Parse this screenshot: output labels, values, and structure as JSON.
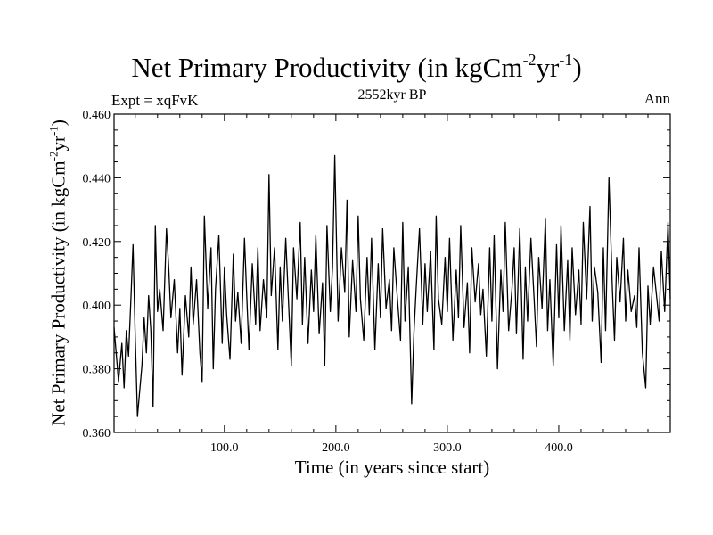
{
  "chart_data": {
    "type": "line",
    "title": {
      "main": "Net Primary Productivity (in kgCm",
      "sup1": "-2",
      "mid": "yr",
      "sup2": "-1",
      "end": ")"
    },
    "subtitle": "2552kyr BP",
    "expt_label": "Expt = xqFvK",
    "season_label": "Ann",
    "xlabel": "Time (in years since start)",
    "ylabel": {
      "main": "Net Primary Productivity (in kgCm",
      "sup1": "-2",
      "mid": "yr",
      "sup2": "-1",
      "end": ")"
    },
    "xlim": [
      1,
      500
    ],
    "ylim": [
      0.36,
      0.46
    ],
    "xticks": [
      {
        "value": 100,
        "label": "100.0"
      },
      {
        "value": 200,
        "label": "200.0"
      },
      {
        "value": 300,
        "label": "300.0"
      },
      {
        "value": 400,
        "label": "400.0"
      }
    ],
    "yticks": [
      {
        "value": 0.36,
        "label": "0.360"
      },
      {
        "value": 0.38,
        "label": "0.380"
      },
      {
        "value": 0.4,
        "label": "0.400"
      },
      {
        "value": 0.42,
        "label": "0.420"
      },
      {
        "value": 0.44,
        "label": "0.440"
      },
      {
        "value": 0.46,
        "label": "0.460"
      }
    ],
    "x": [
      1,
      5,
      8,
      10,
      12,
      14,
      16,
      18,
      20,
      22,
      24,
      26,
      28,
      30,
      32,
      34,
      36,
      38,
      40,
      42,
      45,
      48,
      50,
      52,
      55,
      58,
      60,
      62,
      65,
      68,
      70,
      72,
      75,
      78,
      80,
      82,
      85,
      88,
      90,
      92,
      95,
      98,
      100,
      102,
      105,
      108,
      110,
      112,
      115,
      118,
      120,
      122,
      125,
      128,
      130,
      132,
      135,
      138,
      140,
      142,
      145,
      148,
      150,
      152,
      155,
      158,
      160,
      162,
      165,
      168,
      170,
      172,
      175,
      178,
      180,
      182,
      185,
      188,
      190,
      192,
      195,
      197,
      199,
      202,
      205,
      208,
      210,
      212,
      215,
      218,
      220,
      222,
      225,
      228,
      230,
      232,
      235,
      238,
      240,
      242,
      245,
      248,
      250,
      252,
      255,
      258,
      260,
      262,
      265,
      268,
      270,
      272,
      275,
      278,
      280,
      282,
      285,
      288,
      290,
      292,
      295,
      298,
      300,
      302,
      305,
      308,
      310,
      312,
      315,
      318,
      320,
      322,
      325,
      328,
      330,
      332,
      335,
      338,
      340,
      342,
      345,
      348,
      350,
      352,
      355,
      358,
      360,
      362,
      365,
      368,
      370,
      372,
      375,
      378,
      380,
      382,
      385,
      388,
      390,
      392,
      395,
      398,
      400,
      402,
      405,
      408,
      410,
      412,
      415,
      418,
      420,
      422,
      425,
      428,
      430,
      432,
      435,
      438,
      440,
      442,
      445,
      448,
      450,
      452,
      455,
      458,
      460,
      462,
      465,
      468,
      470,
      472,
      475,
      478,
      480,
      482,
      485,
      488,
      490,
      492,
      495,
      498,
      500
    ],
    "values": [
      0.393,
      0.376,
      0.388,
      0.374,
      0.392,
      0.384,
      0.401,
      0.419,
      0.39,
      0.365,
      0.373,
      0.381,
      0.396,
      0.385,
      0.403,
      0.392,
      0.368,
      0.425,
      0.398,
      0.405,
      0.392,
      0.424,
      0.412,
      0.396,
      0.408,
      0.385,
      0.399,
      0.378,
      0.403,
      0.39,
      0.412,
      0.394,
      0.408,
      0.385,
      0.376,
      0.428,
      0.399,
      0.418,
      0.38,
      0.405,
      0.422,
      0.388,
      0.412,
      0.397,
      0.383,
      0.416,
      0.395,
      0.404,
      0.388,
      0.421,
      0.403,
      0.386,
      0.413,
      0.394,
      0.418,
      0.392,
      0.408,
      0.396,
      0.441,
      0.403,
      0.418,
      0.386,
      0.412,
      0.395,
      0.421,
      0.397,
      0.381,
      0.418,
      0.402,
      0.426,
      0.394,
      0.415,
      0.388,
      0.411,
      0.398,
      0.422,
      0.391,
      0.407,
      0.381,
      0.425,
      0.398,
      0.412,
      0.447,
      0.395,
      0.418,
      0.404,
      0.433,
      0.39,
      0.414,
      0.398,
      0.428,
      0.402,
      0.389,
      0.415,
      0.397,
      0.421,
      0.386,
      0.413,
      0.396,
      0.424,
      0.399,
      0.408,
      0.392,
      0.418,
      0.403,
      0.389,
      0.426,
      0.395,
      0.412,
      0.369,
      0.391,
      0.405,
      0.424,
      0.394,
      0.413,
      0.398,
      0.417,
      0.386,
      0.428,
      0.402,
      0.394,
      0.415,
      0.398,
      0.421,
      0.389,
      0.411,
      0.396,
      0.425,
      0.393,
      0.407,
      0.385,
      0.418,
      0.401,
      0.413,
      0.397,
      0.405,
      0.384,
      0.418,
      0.395,
      0.422,
      0.38,
      0.411,
      0.398,
      0.426,
      0.392,
      0.405,
      0.418,
      0.391,
      0.424,
      0.383,
      0.412,
      0.395,
      0.421,
      0.401,
      0.387,
      0.415,
      0.399,
      0.427,
      0.392,
      0.408,
      0.381,
      0.419,
      0.396,
      0.425,
      0.392,
      0.414,
      0.389,
      0.418,
      0.397,
      0.411,
      0.394,
      0.426,
      0.402,
      0.431,
      0.395,
      0.412,
      0.404,
      0.382,
      0.418,
      0.392,
      0.44,
      0.406,
      0.389,
      0.415,
      0.401,
      0.421,
      0.395,
      0.411,
      0.398,
      0.403,
      0.393,
      0.418,
      0.385,
      0.374,
      0.406,
      0.394,
      0.412,
      0.402,
      0.395,
      0.417,
      0.398,
      0.426,
      0.402
    ]
  }
}
